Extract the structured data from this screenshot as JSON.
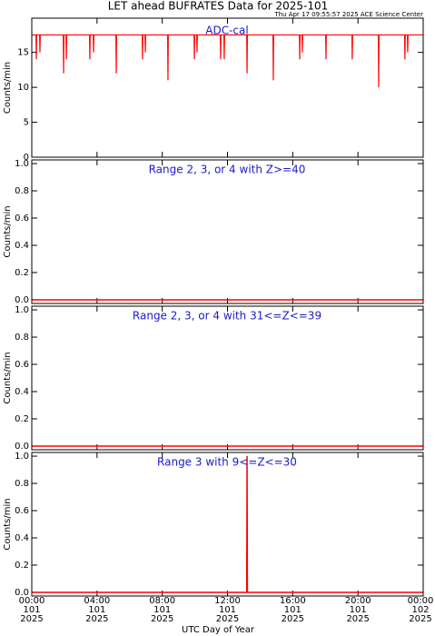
{
  "title": "LET ahead BUFRATES Data for 2025-101",
  "timestamp": "Thu Apr 17 09:55:57 2025 ACE Science Center",
  "xlabel": "UTC Day of Year",
  "xlim": [
    0,
    24
  ],
  "xticks": [
    {
      "value": 0,
      "label": "00:00"
    },
    {
      "value": 4,
      "label": "04:00"
    },
    {
      "value": 8,
      "label": "08:00"
    },
    {
      "value": 12,
      "label": "12:00"
    },
    {
      "value": 16,
      "label": "16:00"
    },
    {
      "value": 20,
      "label": "20:00"
    },
    {
      "value": 24,
      "label": "00:00"
    }
  ],
  "xtick_days": [
    "101",
    "101",
    "101",
    "101",
    "101",
    "101",
    "102"
  ],
  "xtick_years": [
    "2025",
    "2025",
    "2025",
    "2025",
    "2025",
    "2025",
    "2025"
  ],
  "chart_data": [
    {
      "type": "line",
      "title": "ADC-cal",
      "ylabel": "Counts/min",
      "ylim": [
        0,
        19.9
      ],
      "yticks": [
        0,
        5,
        10,
        15
      ],
      "x": [
        0,
        0.26,
        0.28,
        0.3,
        0.48,
        0.5,
        0.52,
        1.93,
        1.95,
        1.97,
        2.1,
        2.12,
        2.14,
        3.54,
        3.56,
        3.58,
        3.77,
        3.79,
        3.81,
        5.16,
        5.18,
        5.2,
        6.77,
        6.79,
        6.81,
        6.94,
        6.96,
        6.98,
        8.33,
        8.35,
        8.37,
        9.95,
        9.97,
        9.99,
        10.11,
        10.13,
        10.15,
        11.56,
        11.58,
        11.6,
        11.78,
        11.8,
        11.82,
        13.18,
        13.2,
        13.22,
        14.79,
        14.81,
        14.83,
        16.41,
        16.43,
        16.45,
        16.57,
        16.59,
        16.61,
        18.02,
        18.04,
        18.06,
        19.63,
        19.65,
        19.67,
        21.25,
        21.27,
        21.29,
        22.86,
        22.88,
        22.9,
        23.03,
        23.05,
        23.07,
        24
      ],
      "series": [
        {
          "color": "#ff0000",
          "values": [
            17.5,
            17.5,
            14,
            17.5,
            17.5,
            15,
            17.5,
            17.5,
            12,
            17.5,
            17.5,
            14,
            17.5,
            17.5,
            14,
            17.5,
            17.5,
            15,
            17.5,
            17.5,
            12,
            17.5,
            17.5,
            14,
            17.5,
            17.5,
            15,
            17.5,
            17.5,
            11,
            17.5,
            17.5,
            14,
            17.5,
            17.5,
            15,
            17.5,
            17.5,
            14,
            17.5,
            17.5,
            14,
            17.5,
            17.5,
            12,
            17.5,
            17.5,
            11,
            17.5,
            17.5,
            14,
            17.5,
            17.5,
            15,
            17.5,
            17.5,
            14,
            17.5,
            17.5,
            14,
            17.5,
            17.5,
            10,
            17.5,
            17.5,
            14,
            17.5,
            17.5,
            15,
            17.5,
            17.5
          ]
        }
      ]
    },
    {
      "type": "line",
      "title": "Range 2, 3, or 4 with Z>=40",
      "ylabel": "Counts/min",
      "ylim": [
        -0.027,
        1.027
      ],
      "yticks": [
        {
          "value": 0,
          "label": "0.0"
        },
        {
          "value": 0.2,
          "label": "0.2"
        },
        {
          "value": 0.4,
          "label": "0.4"
        },
        {
          "value": 0.6,
          "label": "0.6"
        },
        {
          "value": 0.8,
          "label": "0.8"
        },
        {
          "value": 1,
          "label": "1.0"
        }
      ],
      "x": [
        0,
        24
      ],
      "series": [
        {
          "color": "#ff0000",
          "values": [
            0,
            0
          ]
        }
      ]
    },
    {
      "type": "line",
      "title": "Range 2, 3, or 4 with 31<=Z<=39",
      "ylabel": "Counts/min",
      "ylim": [
        -0.027,
        1.027
      ],
      "yticks": [
        {
          "value": 0,
          "label": "0.0"
        },
        {
          "value": 0.2,
          "label": "0.2"
        },
        {
          "value": 0.4,
          "label": "0.4"
        },
        {
          "value": 0.6,
          "label": "0.6"
        },
        {
          "value": 0.8,
          "label": "0.8"
        },
        {
          "value": 1,
          "label": "1.0"
        }
      ],
      "x": [
        0,
        24
      ],
      "series": [
        {
          "color": "#ff0000",
          "values": [
            0,
            0
          ]
        }
      ]
    },
    {
      "type": "line",
      "title": "Range 3 with 9<=Z<=30",
      "ylabel": "Counts/min",
      "ylim": [
        -0.027,
        1.027
      ],
      "yticks": [
        {
          "value": 0,
          "label": "0.0"
        },
        {
          "value": 0.2,
          "label": "0.2"
        },
        {
          "value": 0.4,
          "label": "0.4"
        },
        {
          "value": 0.6,
          "label": "0.6"
        },
        {
          "value": 0.8,
          "label": "0.8"
        },
        {
          "value": 1,
          "label": "1.0"
        }
      ],
      "x": [
        0,
        13.18,
        13.2,
        13.22,
        24
      ],
      "series": [
        {
          "color": "#ff0000",
          "values": [
            0,
            0,
            1,
            0,
            0
          ]
        }
      ]
    }
  ]
}
